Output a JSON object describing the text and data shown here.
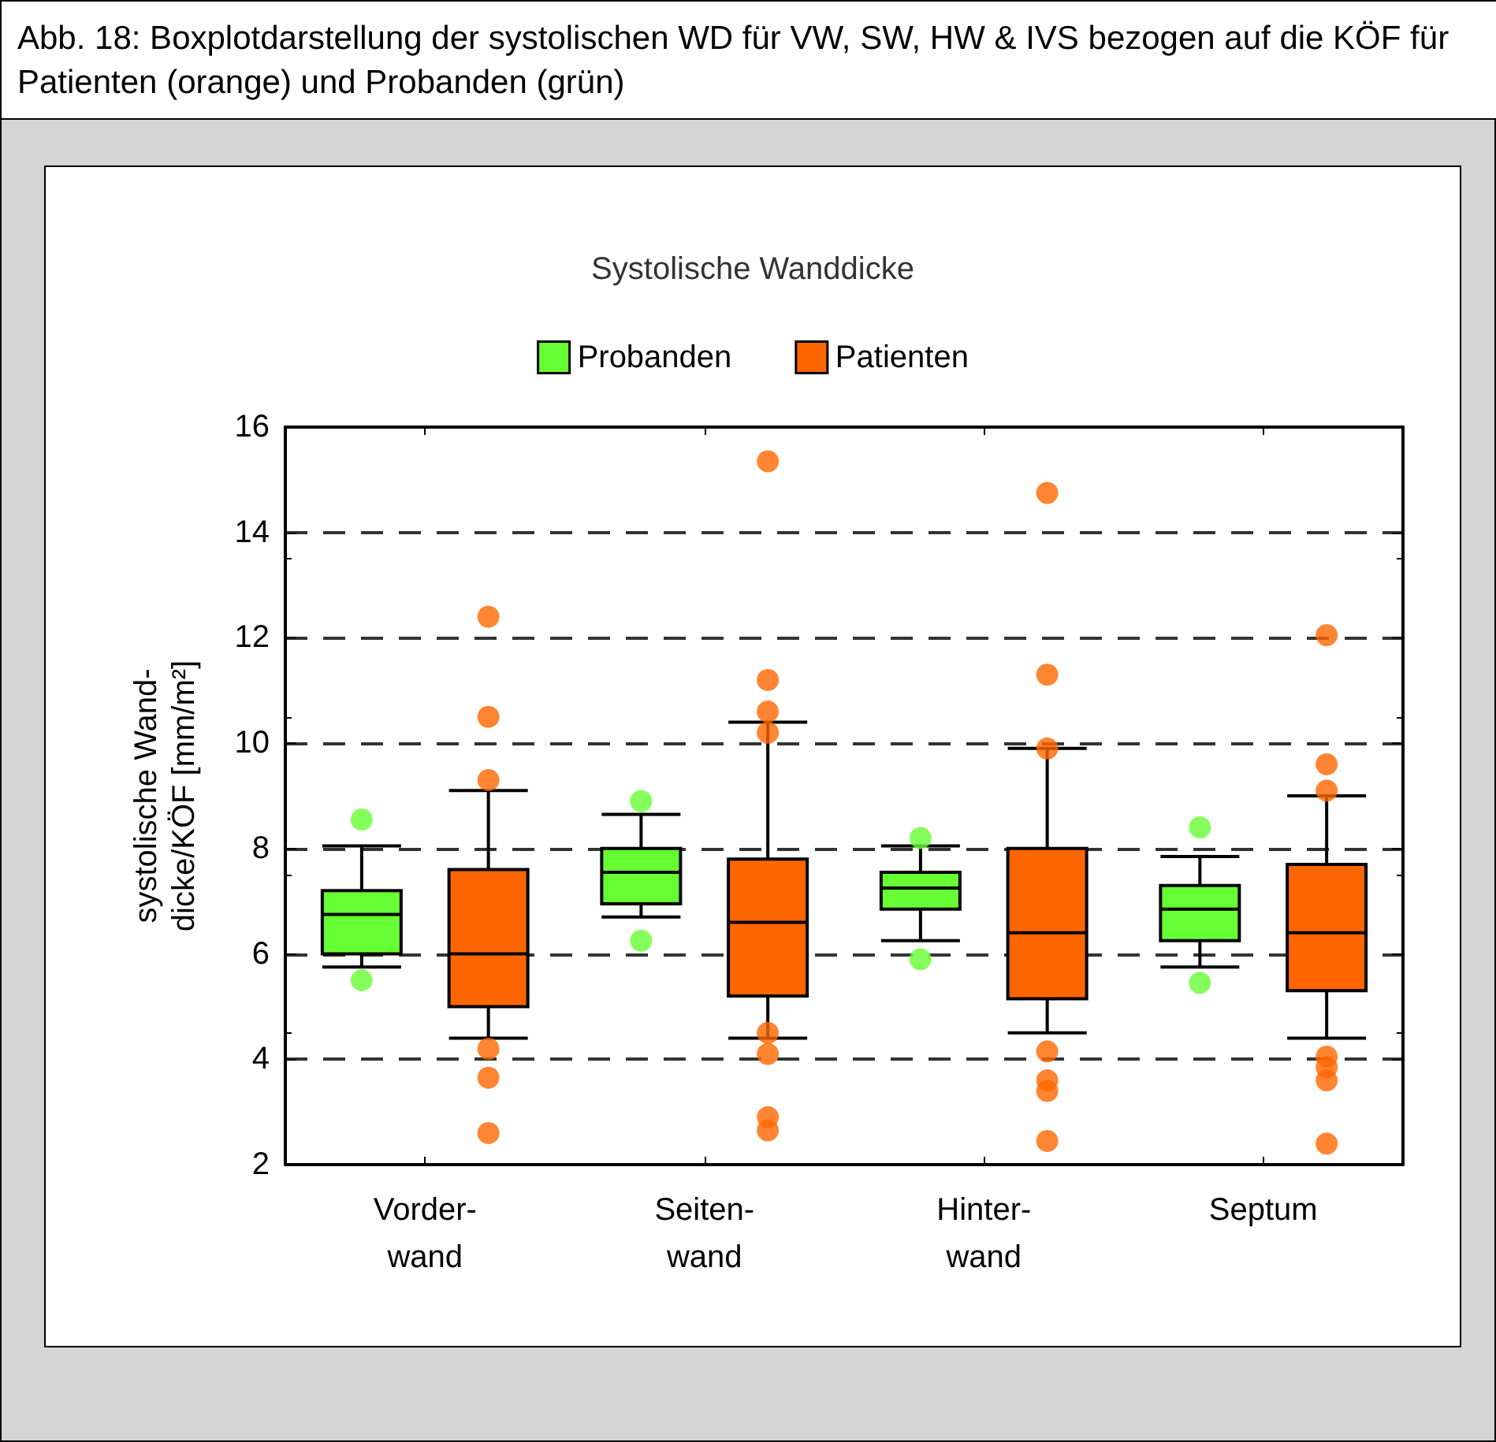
{
  "chart_data": {
    "type": "box",
    "title": "Systolische Wanddicke",
    "annotations": [
      "Abb. 18: Boxplotdarstellung der systolischen WD für VW, SW, HW & IVS bezogen auf die KÖF für Patienten (orange) und Probanden (grün)"
    ],
    "ylabel": "systolische Wand-\ndicke/KÖF [mm/m²]",
    "categories": [
      "Vorder-\nwand",
      "Seiten-\nwand",
      "Hinter-\nwand",
      "Septum"
    ],
    "series": [
      {
        "name": "Probanden",
        "color": "#66ff33",
        "boxes": [
          {
            "low": 5.75,
            "q1": 6.0,
            "median": 6.75,
            "q3": 7.2,
            "high": 8.05,
            "outliers": [
              8.55,
              5.5
            ]
          },
          {
            "low": 6.7,
            "q1": 6.95,
            "median": 7.55,
            "q3": 8.0,
            "high": 8.65,
            "outliers": [
              8.9,
              6.25
            ]
          },
          {
            "low": 6.25,
            "q1": 6.85,
            "median": 7.25,
            "q3": 7.55,
            "high": 8.05,
            "outliers": [
              8.2,
              5.9
            ]
          },
          {
            "low": 5.75,
            "q1": 6.25,
            "median": 6.85,
            "q3": 7.3,
            "high": 7.85,
            "outliers": [
              8.4,
              5.45
            ]
          }
        ]
      },
      {
        "name": "Patienten",
        "color": "#ff6600",
        "boxes": [
          {
            "low": 4.4,
            "q1": 5.0,
            "median": 6.0,
            "q3": 7.6,
            "high": 9.1,
            "outliers": [
              12.4,
              10.5,
              9.3,
              4.2,
              3.65,
              2.6
            ]
          },
          {
            "low": 4.4,
            "q1": 5.2,
            "median": 6.6,
            "q3": 7.8,
            "high": 10.4,
            "outliers": [
              15.35,
              11.2,
              10.6,
              10.2,
              4.5,
              4.1,
              2.9,
              2.65
            ]
          },
          {
            "low": 4.5,
            "q1": 5.15,
            "median": 6.4,
            "q3": 8.0,
            "high": 9.9,
            "outliers": [
              14.75,
              11.3,
              9.9,
              4.15,
              3.6,
              3.4,
              2.45
            ]
          },
          {
            "low": 4.4,
            "q1": 5.3,
            "median": 6.4,
            "q3": 7.7,
            "high": 9.0,
            "outliers": [
              12.05,
              9.6,
              9.1,
              4.05,
              3.85,
              3.6,
              2.4
            ]
          }
        ]
      }
    ],
    "ylim": [
      2,
      16
    ],
    "yticks": [
      2,
      4,
      6,
      8,
      10,
      12,
      14,
      16
    ],
    "grid": "y",
    "legend": "top",
    "marker": "circle"
  }
}
